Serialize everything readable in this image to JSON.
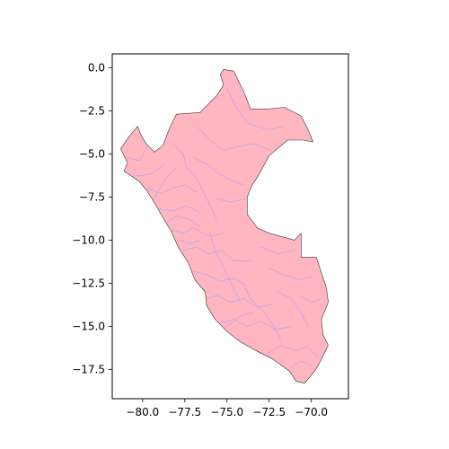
{
  "chart_data": {
    "type": "map",
    "title": "",
    "xlabel": "",
    "ylabel": "",
    "xlim": [
      -81.8,
      -67.8
    ],
    "ylim": [
      -19.2,
      0.8
    ],
    "x_ticks": [
      {
        "value": -80.0,
        "label": "−80.0"
      },
      {
        "value": -77.5,
        "label": "−77.5"
      },
      {
        "value": -75.0,
        "label": "−75.0"
      },
      {
        "value": -72.5,
        "label": "−72.5"
      },
      {
        "value": -70.0,
        "label": "−70.0"
      }
    ],
    "y_ticks": [
      {
        "value": 0.0,
        "label": "0.0"
      },
      {
        "value": -2.5,
        "label": "−2.5"
      },
      {
        "value": -5.0,
        "label": "−5.0"
      },
      {
        "value": -7.5,
        "label": "−7.5"
      },
      {
        "value": -10.0,
        "label": "−10.0"
      },
      {
        "value": -12.5,
        "label": "−12.5"
      },
      {
        "value": -15.0,
        "label": "−15.0"
      },
      {
        "value": -17.5,
        "label": "−17.5"
      }
    ],
    "region_fill": "#ffb6c1",
    "boundary_color": "#9999ff",
    "outline_color": "#333333",
    "outline": [
      [
        -75.2,
        -0.1
      ],
      [
        -74.6,
        -0.2
      ],
      [
        -74.0,
        -1.4
      ],
      [
        -73.6,
        -2.4
      ],
      [
        -72.6,
        -2.4
      ],
      [
        -71.6,
        -2.3
      ],
      [
        -70.6,
        -2.8
      ],
      [
        -70.1,
        -3.8
      ],
      [
        -69.9,
        -4.3
      ],
      [
        -70.5,
        -4.2
      ],
      [
        -71.4,
        -4.2
      ],
      [
        -72.5,
        -5.1
      ],
      [
        -73.1,
        -6.2
      ],
      [
        -73.5,
        -6.8
      ],
      [
        -73.8,
        -7.5
      ],
      [
        -73.8,
        -8.5
      ],
      [
        -73.2,
        -9.3
      ],
      [
        -72.5,
        -9.6
      ],
      [
        -71.0,
        -10.0
      ],
      [
        -70.6,
        -9.6
      ],
      [
        -70.6,
        -11.0
      ],
      [
        -69.7,
        -11.0
      ],
      [
        -69.1,
        -12.8
      ],
      [
        -69.0,
        -13.6
      ],
      [
        -69.4,
        -14.6
      ],
      [
        -69.3,
        -15.5
      ],
      [
        -69.0,
        -16.1
      ],
      [
        -69.5,
        -17.1
      ],
      [
        -69.8,
        -17.6
      ],
      [
        -70.4,
        -18.3
      ],
      [
        -70.9,
        -18.2
      ],
      [
        -71.3,
        -17.6
      ],
      [
        -72.3,
        -16.9
      ],
      [
        -73.3,
        -16.4
      ],
      [
        -74.2,
        -15.9
      ],
      [
        -75.0,
        -15.3
      ],
      [
        -75.7,
        -14.6
      ],
      [
        -76.2,
        -13.8
      ],
      [
        -76.3,
        -13.0
      ],
      [
        -76.9,
        -12.3
      ],
      [
        -77.3,
        -11.3
      ],
      [
        -77.9,
        -10.4
      ],
      [
        -78.3,
        -9.5
      ],
      [
        -78.8,
        -8.7
      ],
      [
        -79.2,
        -8.0
      ],
      [
        -79.7,
        -7.2
      ],
      [
        -80.2,
        -6.6
      ],
      [
        -81.1,
        -6.0
      ],
      [
        -80.9,
        -5.5
      ],
      [
        -81.3,
        -4.7
      ],
      [
        -80.8,
        -4.0
      ],
      [
        -80.3,
        -3.4
      ],
      [
        -80.1,
        -3.9
      ],
      [
        -79.8,
        -4.4
      ],
      [
        -79.3,
        -4.9
      ],
      [
        -78.8,
        -4.5
      ],
      [
        -78.4,
        -3.5
      ],
      [
        -78.0,
        -2.7
      ],
      [
        -76.6,
        -2.6
      ],
      [
        -75.6,
        -1.6
      ],
      [
        -75.2,
        -1.0
      ],
      [
        -75.4,
        -0.4
      ],
      [
        -75.2,
        -0.1
      ]
    ],
    "inner_boundaries": [
      [
        [
          -81.0,
          -5.2
        ],
        [
          -80.2,
          -5.4
        ],
        [
          -79.7,
          -4.6
        ]
      ],
      [
        [
          -80.6,
          -6.3
        ],
        [
          -79.6,
          -6.2
        ],
        [
          -79.1,
          -5.9
        ],
        [
          -78.7,
          -5.6
        ]
      ],
      [
        [
          -79.7,
          -7.0
        ],
        [
          -78.9,
          -7.3
        ],
        [
          -78.3,
          -7.0
        ],
        [
          -77.5,
          -6.8
        ],
        [
          -76.8,
          -7.2
        ]
      ],
      [
        [
          -79.0,
          -8.2
        ],
        [
          -78.2,
          -8.3
        ],
        [
          -77.4,
          -8.0
        ],
        [
          -76.6,
          -8.4
        ]
      ],
      [
        [
          -78.4,
          -9.4
        ],
        [
          -77.6,
          -9.6
        ],
        [
          -77.0,
          -9.3
        ],
        [
          -76.0,
          -9.8
        ],
        [
          -75.2,
          -9.6
        ]
      ],
      [
        [
          -77.6,
          -10.6
        ],
        [
          -76.8,
          -10.4
        ],
        [
          -76.1,
          -10.8
        ],
        [
          -75.3,
          -10.6
        ],
        [
          -74.6,
          -11.2
        ],
        [
          -73.6,
          -11.2
        ]
      ],
      [
        [
          -77.0,
          -11.8
        ],
        [
          -76.2,
          -12.0
        ],
        [
          -75.4,
          -12.4
        ],
        [
          -74.6,
          -12.2
        ],
        [
          -73.9,
          -12.6
        ]
      ],
      [
        [
          -76.2,
          -13.4
        ],
        [
          -75.6,
          -13.2
        ],
        [
          -74.8,
          -13.6
        ],
        [
          -74.0,
          -13.4
        ],
        [
          -73.2,
          -13.9
        ],
        [
          -72.2,
          -13.7
        ]
      ],
      [
        [
          -75.3,
          -14.8
        ],
        [
          -74.6,
          -14.6
        ],
        [
          -73.8,
          -15.0
        ],
        [
          -73.0,
          -14.7
        ],
        [
          -72.1,
          -15.2
        ],
        [
          -71.1,
          -15.0
        ]
      ],
      [
        [
          -72.6,
          -16.6
        ],
        [
          -71.8,
          -16.1
        ],
        [
          -71.0,
          -16.4
        ],
        [
          -70.2,
          -16.2
        ],
        [
          -69.6,
          -16.8
        ]
      ],
      [
        [
          -71.2,
          -17.4
        ],
        [
          -70.6,
          -17.0
        ],
        [
          -70.0,
          -17.3
        ]
      ],
      [
        [
          -70.8,
          -13.2
        ],
        [
          -70.0,
          -13.6
        ],
        [
          -69.4,
          -13.4
        ]
      ],
      [
        [
          -72.6,
          -11.6
        ],
        [
          -71.6,
          -12.0
        ],
        [
          -70.8,
          -12.3
        ],
        [
          -69.9,
          -12.1
        ]
      ],
      [
        [
          -73.0,
          -10.4
        ],
        [
          -72.0,
          -10.8
        ],
        [
          -71.0,
          -10.6
        ]
      ],
      [
        [
          -77.0,
          -5.2
        ],
        [
          -76.2,
          -5.6
        ],
        [
          -75.4,
          -6.2
        ],
        [
          -74.6,
          -6.6
        ],
        [
          -74.0,
          -6.8
        ]
      ],
      [
        [
          -76.8,
          -3.4
        ],
        [
          -76.0,
          -4.2
        ],
        [
          -75.2,
          -4.8
        ],
        [
          -74.4,
          -4.6
        ],
        [
          -73.4,
          -4.4
        ],
        [
          -72.4,
          -4.8
        ]
      ],
      [
        [
          -75.0,
          -1.2
        ],
        [
          -74.4,
          -2.4
        ],
        [
          -73.8,
          -3.2
        ],
        [
          -72.6,
          -3.6
        ],
        [
          -71.6,
          -3.4
        ]
      ],
      [
        [
          -78.2,
          -4.4
        ],
        [
          -77.6,
          -5.0
        ],
        [
          -77.4,
          -5.8
        ],
        [
          -76.8,
          -6.4
        ],
        [
          -76.4,
          -7.2
        ],
        [
          -76.0,
          -8.0
        ],
        [
          -75.6,
          -8.8
        ]
      ],
      [
        [
          -76.0,
          -9.6
        ],
        [
          -75.8,
          -10.4
        ],
        [
          -75.4,
          -11.2
        ],
        [
          -75.0,
          -12.0
        ],
        [
          -74.6,
          -12.8
        ],
        [
          -74.2,
          -13.6
        ]
      ],
      [
        [
          -74.0,
          -12.6
        ],
        [
          -73.6,
          -13.4
        ],
        [
          -72.8,
          -14.2
        ],
        [
          -72.2,
          -15.0
        ],
        [
          -71.8,
          -15.8
        ]
      ],
      [
        [
          -79.4,
          -7.8
        ],
        [
          -79.0,
          -7.0
        ],
        [
          -78.6,
          -6.4
        ],
        [
          -78.0,
          -5.8
        ]
      ],
      [
        [
          -73.8,
          -7.6
        ],
        [
          -74.8,
          -7.8
        ],
        [
          -75.6,
          -7.6
        ]
      ],
      [
        [
          -75.0,
          -15.0
        ],
        [
          -74.2,
          -14.4
        ],
        [
          -73.4,
          -14.2
        ]
      ],
      [
        [
          -78.6,
          -9.0
        ],
        [
          -78.0,
          -8.6
        ],
        [
          -77.2,
          -8.8
        ],
        [
          -76.6,
          -9.2
        ]
      ],
      [
        [
          -77.8,
          -10.0
        ],
        [
          -77.2,
          -10.2
        ],
        [
          -76.6,
          -10.0
        ]
      ],
      [
        [
          -72.0,
          -13.0
        ],
        [
          -71.2,
          -13.4
        ],
        [
          -70.6,
          -14.2
        ],
        [
          -70.2,
          -15.0
        ]
      ]
    ]
  }
}
